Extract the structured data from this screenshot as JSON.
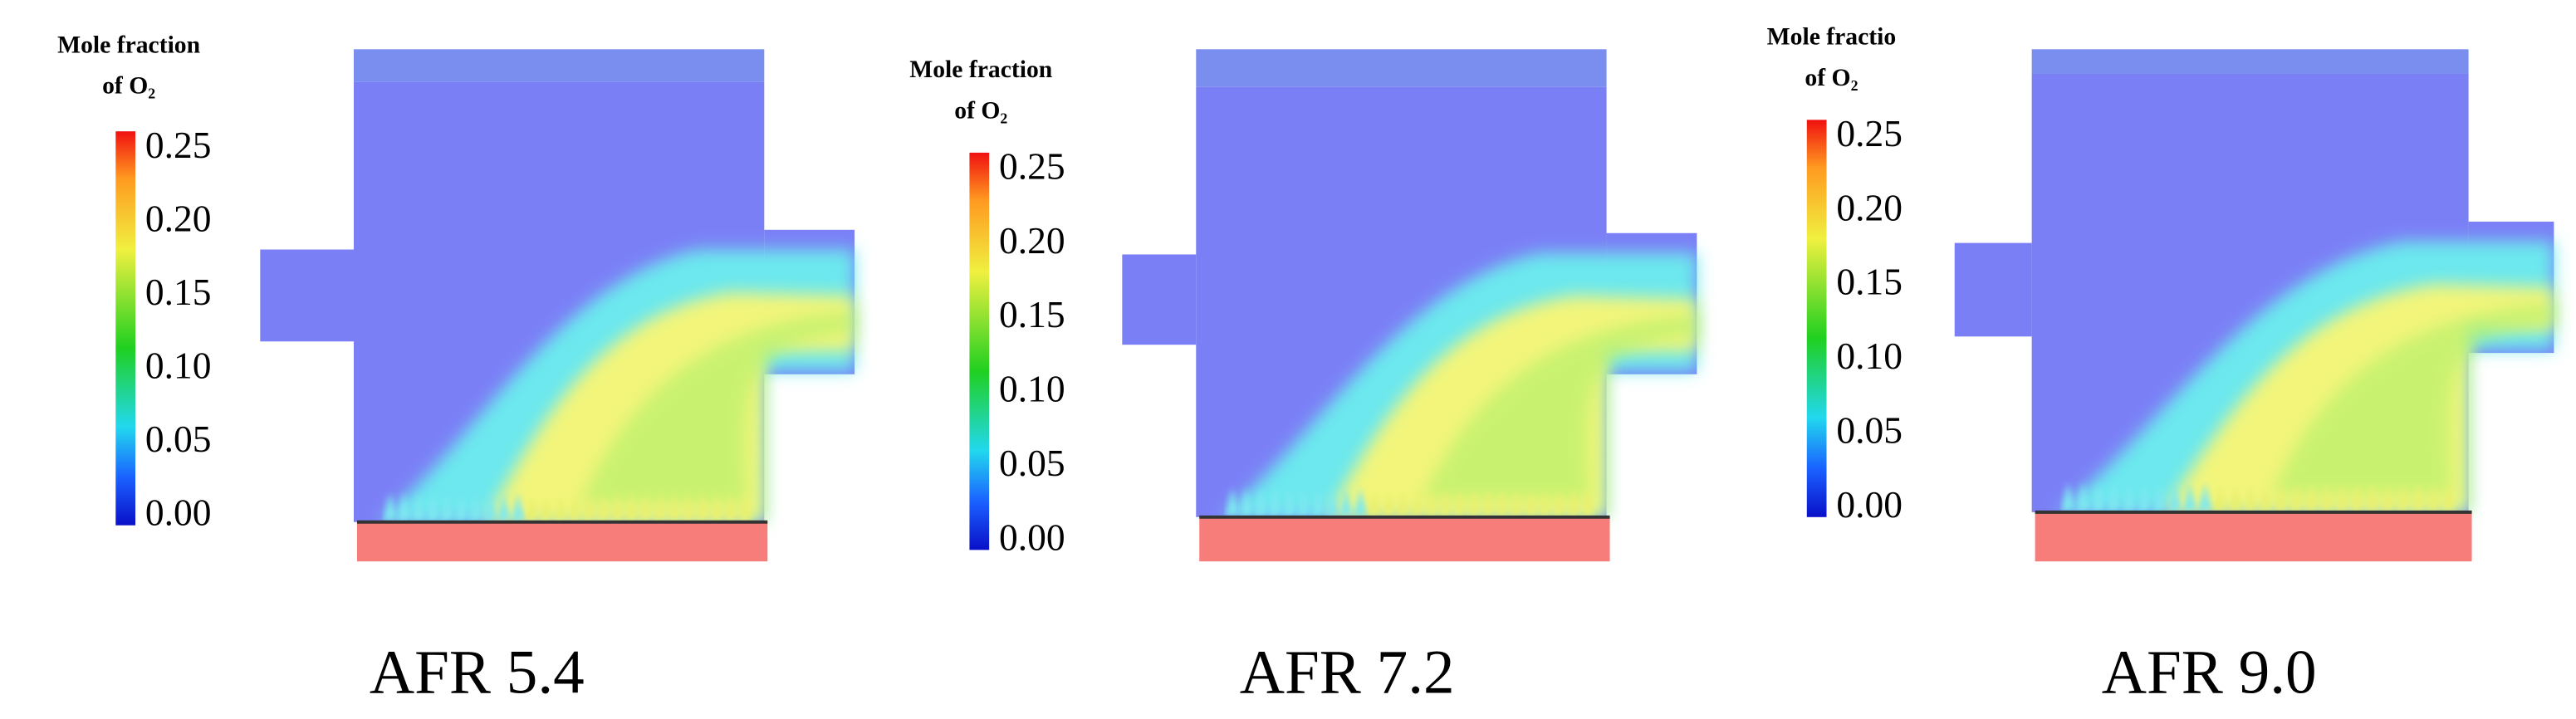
{
  "panels": [
    {
      "legend_title": [
        "Mole fraction",
        "of O₂"
      ],
      "ticks": [
        "0.25",
        "0.20",
        "0.15",
        "0.10",
        "0.05",
        "0.00"
      ],
      "caption": "AFR 5.4"
    },
    {
      "legend_title": [
        "Mole fraction",
        "of O₂"
      ],
      "ticks": [
        "0.25",
        "0.20",
        "0.15",
        "0.10",
        "0.05",
        "0.00"
      ],
      "caption": "AFR 7.2"
    },
    {
      "legend_title": [
        "Mole fractio",
        "of O₂"
      ],
      "ticks": [
        "0.25",
        "0.20",
        "0.15",
        "0.10",
        "0.05",
        "0.00"
      ],
      "caption": "AFR 9.0"
    }
  ]
}
